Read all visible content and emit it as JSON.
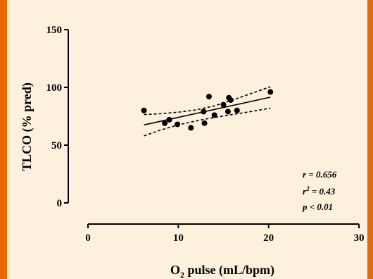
{
  "colors": {
    "background": "#fdf0dc",
    "border": "#e56a08",
    "ink": "#000000"
  },
  "chart_data": {
    "type": "scatter",
    "xlabel": "O2 pulse (mL/bpm)",
    "xlabel_main": "O",
    "xlabel_sub": "2",
    "xlabel_rest": " pulse (mL/bpm)",
    "ylabel": "TLCO (% pred)",
    "xlim": [
      0,
      30
    ],
    "ylim": [
      0,
      150
    ],
    "x_ticks": [
      0,
      10,
      20,
      30
    ],
    "y_ticks": [
      0,
      50,
      100,
      150
    ],
    "grid": false,
    "points": [
      {
        "x": 6.2,
        "y": 80
      },
      {
        "x": 8.5,
        "y": 69
      },
      {
        "x": 9.0,
        "y": 72
      },
      {
        "x": 9.9,
        "y": 68
      },
      {
        "x": 11.4,
        "y": 65
      },
      {
        "x": 12.8,
        "y": 79
      },
      {
        "x": 12.9,
        "y": 69
      },
      {
        "x": 13.4,
        "y": 92
      },
      {
        "x": 14.0,
        "y": 76
      },
      {
        "x": 15.0,
        "y": 85
      },
      {
        "x": 15.5,
        "y": 79
      },
      {
        "x": 15.6,
        "y": 91
      },
      {
        "x": 15.8,
        "y": 89
      },
      {
        "x": 16.5,
        "y": 80
      },
      {
        "x": 20.2,
        "y": 96
      }
    ],
    "regression": {
      "x": [
        6.2,
        20.2
      ],
      "y": [
        67.5,
        91.5
      ]
    },
    "ci_upper": {
      "x": [
        6.2,
        8,
        10,
        12,
        14,
        16,
        18,
        20.2
      ],
      "y": [
        76.5,
        77.2,
        78.5,
        80.5,
        84,
        89,
        94.5,
        100.5
      ]
    },
    "ci_lower": {
      "x": [
        6.2,
        8,
        10,
        12,
        14,
        16,
        18,
        20.2
      ],
      "y": [
        58,
        63,
        67.5,
        71,
        74,
        76.5,
        79,
        82
      ]
    },
    "annotations": {
      "r": "r = 0.656",
      "r2_pre": "r",
      "r2_sup": "2",
      "r2_post": " = 0.43",
      "p": "p < 0.01"
    }
  }
}
